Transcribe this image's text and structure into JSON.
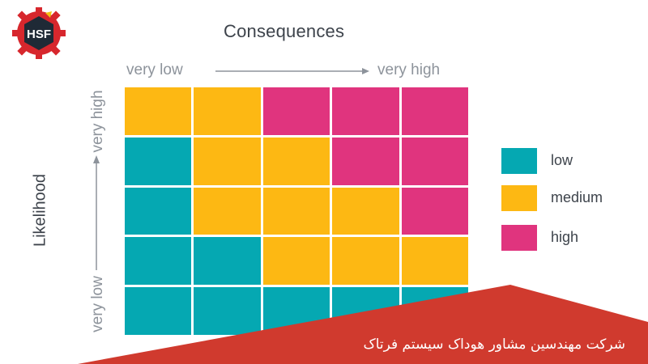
{
  "logo": {
    "text": "HSF",
    "icon": "gear-logo-icon",
    "colors": {
      "gear": "#d7272d",
      "hex": "#1f2a36"
    }
  },
  "title": "Consequences",
  "x_axis": {
    "low": "very low",
    "high": "very high"
  },
  "y_axis": {
    "title": "Likelihood",
    "low": "very low",
    "high": "very high"
  },
  "colors": {
    "low": "#05a8b2",
    "medium": "#fdb813",
    "high": "#e0347e",
    "banner": "#d03a2e"
  },
  "matrix": [
    [
      "medium",
      "medium",
      "high",
      "high",
      "high"
    ],
    [
      "low",
      "medium",
      "medium",
      "high",
      "high"
    ],
    [
      "low",
      "medium",
      "medium",
      "medium",
      "high"
    ],
    [
      "low",
      "low",
      "medium",
      "medium",
      "medium"
    ],
    [
      "low",
      "low",
      "low",
      "low",
      "low"
    ]
  ],
  "legend": [
    {
      "key": "low",
      "label": "low"
    },
    {
      "key": "medium",
      "label": "medium"
    },
    {
      "key": "high",
      "label": "high"
    }
  ],
  "footer": {
    "company": "شرکت مهندسین مشاور هوداک سیستم فرتاک"
  }
}
